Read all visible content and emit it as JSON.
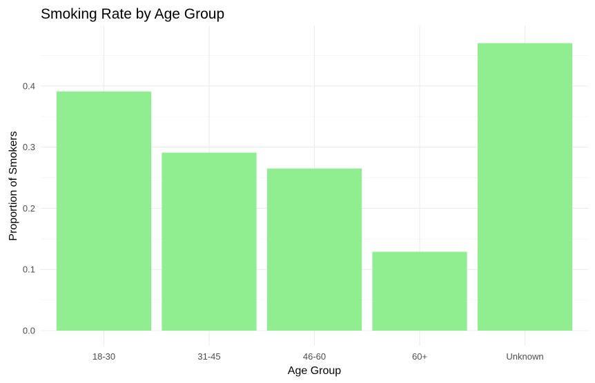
{
  "chart_data": {
    "type": "bar",
    "title": "Smoking Rate by Age Group",
    "xlabel": "Age Group",
    "ylabel": "Proportion of Smokers",
    "categories": [
      "18-30",
      "31-45",
      "46-60",
      "60+",
      "Unknown"
    ],
    "values": [
      0.391,
      0.291,
      0.265,
      0.129,
      0.47
    ],
    "yticks": [
      "0.0",
      "0.1",
      "0.2",
      "0.3",
      "0.4"
    ],
    "ylim": [
      0,
      0.49
    ],
    "bar_color": "#90EE90",
    "grid": true,
    "legend": "none"
  }
}
